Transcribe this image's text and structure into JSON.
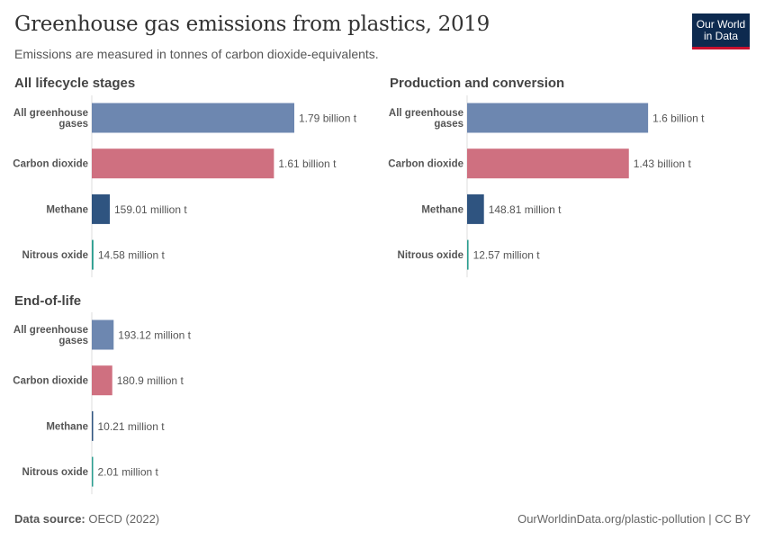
{
  "title": "Greenhouse gas emissions from plastics, 2019",
  "subtitle": "Emissions are measured in tonnes of carbon dioxide-equivalents.",
  "logo": {
    "line1": "Our World",
    "line2": "in Data"
  },
  "footer": {
    "source_label": "Data source:",
    "source": "OECD (2022)",
    "url": "OurWorldinData.org/plastic-pollution | CC BY"
  },
  "colors": {
    "All greenhouse gases": "#6d87b0",
    "Carbon dioxide": "#cf7080",
    "Methane": "#2f5480",
    "Nitrous oxide": "#2a9d8f"
  },
  "chart_data": [
    {
      "type": "bar",
      "orientation": "horizontal",
      "title": "All lifecycle stages",
      "categories": [
        "All greenhouse gases",
        "Carbon dioxide",
        "Methane",
        "Nitrous oxide"
      ],
      "values": [
        1790000000,
        1610000000,
        159010000,
        14580000
      ],
      "labels": [
        "1.79 billion t",
        "1.61 billion t",
        "159.01 million t",
        "14.58 million t"
      ]
    },
    {
      "type": "bar",
      "orientation": "horizontal",
      "title": "Production and conversion",
      "categories": [
        "All greenhouse gases",
        "Carbon dioxide",
        "Methane",
        "Nitrous oxide"
      ],
      "values": [
        1600000000,
        1430000000,
        148810000,
        12570000
      ],
      "labels": [
        "1.6 billion t",
        "1.43 billion t",
        "148.81 million t",
        "12.57 million t"
      ]
    },
    {
      "type": "bar",
      "orientation": "horizontal",
      "title": "End-of-life",
      "categories": [
        "All greenhouse gases",
        "Carbon dioxide",
        "Methane",
        "Nitrous oxide"
      ],
      "values": [
        193120000,
        180900000,
        10210000,
        2010000
      ],
      "labels": [
        "193.12 million t",
        "180.9 million t",
        "10.21 million t",
        "2.01 million t"
      ]
    }
  ]
}
